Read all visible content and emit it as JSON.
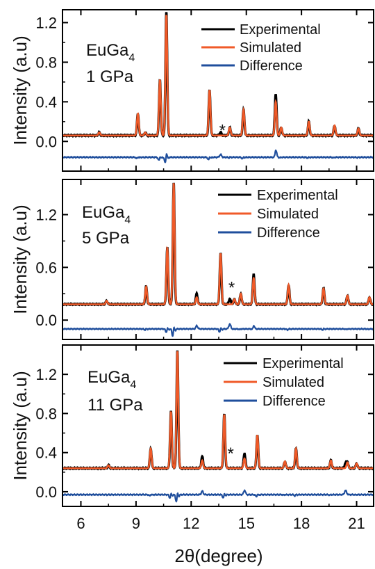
{
  "chart_data": [
    {
      "type": "line",
      "panel_label": {
        "compound": "EuGa",
        "subscript": "4",
        "pressure": "1 GPa"
      },
      "ylabel": "Intensity (a.u)",
      "xlabel": "",
      "xlim": [
        5,
        22
      ],
      "ylim": [
        -0.3,
        1.33
      ],
      "yticks": [
        0.0,
        0.4,
        0.8,
        1.2
      ],
      "ytick_labels": [
        "0.0",
        "0.4",
        "0.8",
        "1.2"
      ],
      "grid": false,
      "legend_position": "top-right",
      "series_colors": {
        "Experimental": "#000000",
        "Simulated": "#f05a28",
        "Difference": "#1f4e9c"
      },
      "series": [
        {
          "name": "Experimental",
          "baseline": 0.06,
          "shift": 0.0
        },
        {
          "name": "Simulated",
          "baseline": 0.06,
          "shift": 0.0
        },
        {
          "name": "Difference",
          "baseline": -0.16
        }
      ],
      "peaks": [
        {
          "x": 7.0,
          "height": 0.03
        },
        {
          "x": 9.1,
          "height": 0.22
        },
        {
          "x": 9.5,
          "height": 0.03
        },
        {
          "x": 10.3,
          "height": 0.56
        },
        {
          "x": 10.65,
          "height": 1.22
        },
        {
          "x": 13.0,
          "height": 0.46
        },
        {
          "x": 14.1,
          "height": 0.08
        },
        {
          "x": 14.85,
          "height": 0.26
        },
        {
          "x": 16.6,
          "height": 0.34
        },
        {
          "x": 16.9,
          "height": 0.08
        },
        {
          "x": 18.4,
          "height": 0.14
        },
        {
          "x": 19.8,
          "height": 0.1
        },
        {
          "x": 21.1,
          "height": 0.07
        }
      ],
      "experimental_excess": [
        {
          "x": 10.65,
          "extra": 0.03
        },
        {
          "x": 16.6,
          "extra": 0.08
        },
        {
          "x": 13.6,
          "extra": 0.03
        }
      ],
      "impurity_marker": {
        "symbol": "*",
        "x": 13.7,
        "y": 0.11
      }
    },
    {
      "type": "line",
      "panel_label": {
        "compound": "EuGa",
        "subscript": "4",
        "pressure": "5 GPa"
      },
      "ylabel": "Intensity (a.u)",
      "xlabel": "",
      "xlim": [
        5,
        22
      ],
      "ylim": [
        -0.22,
        1.6
      ],
      "yticks": [
        0.0,
        0.6,
        1.2
      ],
      "ytick_labels": [
        "0.0",
        "0.6",
        "1.2"
      ],
      "grid": false,
      "legend_position": "top-right",
      "series_colors": {
        "Experimental": "#000000",
        "Simulated": "#f05a28",
        "Difference": "#1f4e9c"
      },
      "series": [
        {
          "name": "Experimental",
          "baseline": 0.18,
          "shift": 0.0
        },
        {
          "name": "Simulated",
          "baseline": 0.18,
          "shift": 0.0
        },
        {
          "name": "Difference",
          "baseline": -0.1
        }
      ],
      "peaks": [
        {
          "x": 7.4,
          "height": 0.04
        },
        {
          "x": 9.55,
          "height": 0.2
        },
        {
          "x": 10.7,
          "height": 0.64
        },
        {
          "x": 11.05,
          "height": 1.38
        },
        {
          "x": 12.3,
          "height": 0.08
        },
        {
          "x": 13.6,
          "height": 0.58
        },
        {
          "x": 14.35,
          "height": 0.06
        },
        {
          "x": 14.7,
          "height": 0.12
        },
        {
          "x": 15.4,
          "height": 0.3
        },
        {
          "x": 17.3,
          "height": 0.22
        },
        {
          "x": 19.2,
          "height": 0.18
        },
        {
          "x": 20.5,
          "height": 0.1
        },
        {
          "x": 21.7,
          "height": 0.08
        }
      ],
      "experimental_excess": [
        {
          "x": 14.1,
          "extra": 0.06
        },
        {
          "x": 15.4,
          "extra": 0.04
        },
        {
          "x": 12.3,
          "extra": 0.04
        }
      ],
      "impurity_marker": {
        "symbol": "*",
        "x": 14.2,
        "y": 0.37
      }
    },
    {
      "type": "line",
      "panel_label": {
        "compound": "EuGa",
        "subscript": "4",
        "pressure": "11 GPa"
      },
      "ylabel": "Intensity (a.u)",
      "xlabel": "2θ(degree)",
      "xlim": [
        5,
        22
      ],
      "ylim": [
        -0.15,
        1.5
      ],
      "xticks": [
        6,
        9,
        12,
        15,
        18,
        21
      ],
      "xtick_labels": [
        "6",
        "9",
        "12",
        "15",
        "18",
        "21"
      ],
      "yticks": [
        0.0,
        0.4,
        0.8,
        1.2
      ],
      "ytick_labels": [
        "0.0",
        "0.4",
        "0.8",
        "1.2"
      ],
      "grid": false,
      "legend_position": "top-right",
      "series_colors": {
        "Experimental": "#000000",
        "Simulated": "#f05a28",
        "Difference": "#1f4e9c"
      },
      "series": [
        {
          "name": "Experimental",
          "baseline": 0.24,
          "shift": 0.0
        },
        {
          "name": "Simulated",
          "baseline": 0.24,
          "shift": 0.0
        },
        {
          "name": "Difference",
          "baseline": -0.03
        }
      ],
      "peaks": [
        {
          "x": 7.5,
          "height": 0.03
        },
        {
          "x": 9.8,
          "height": 0.2
        },
        {
          "x": 10.9,
          "height": 0.58
        },
        {
          "x": 11.25,
          "height": 1.2
        },
        {
          "x": 12.6,
          "height": 0.08
        },
        {
          "x": 13.8,
          "height": 0.55
        },
        {
          "x": 14.9,
          "height": 0.1
        },
        {
          "x": 15.6,
          "height": 0.34
        },
        {
          "x": 17.1,
          "height": 0.07
        },
        {
          "x": 17.7,
          "height": 0.2
        },
        {
          "x": 19.6,
          "height": 0.08
        },
        {
          "x": 20.5,
          "height": 0.06
        },
        {
          "x": 21.0,
          "height": 0.05
        }
      ],
      "experimental_excess": [
        {
          "x": 12.6,
          "extra": 0.04
        },
        {
          "x": 14.9,
          "extra": 0.05
        },
        {
          "x": 20.4,
          "extra": 0.05
        }
      ],
      "impurity_marker": {
        "symbol": "*",
        "x": 14.15,
        "y": 0.39
      }
    }
  ],
  "legend": {
    "items": [
      "Experimental",
      "Simulated",
      "Difference"
    ]
  },
  "colors": {
    "experimental": "#000000",
    "simulated": "#f05a28",
    "difference": "#1f4e9c",
    "frame": "#000000"
  }
}
